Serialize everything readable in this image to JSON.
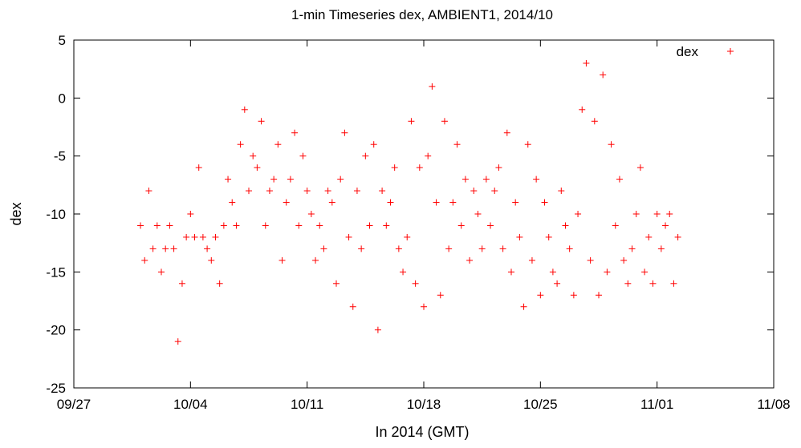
{
  "chart_data": {
    "type": "scatter",
    "title": "1-min Timeseries dex, AMBIENT1, 2014/10",
    "xlabel": "In 2014 (GMT)",
    "ylabel": "dex",
    "xlim": [
      "2014-09-27",
      "2014-11-08"
    ],
    "ylim": [
      -25,
      5
    ],
    "x_ticks": [
      "09/27",
      "10/04",
      "10/11",
      "10/18",
      "10/25",
      "11/01",
      "11/08"
    ],
    "y_ticks": [
      "5",
      "0",
      "-5",
      "-10",
      "-15",
      "-20",
      "-25"
    ],
    "grid": false,
    "legend_position": "top-right",
    "marker": "+",
    "color": "#ff0000",
    "series": [
      {
        "name": "dex",
        "x": [
          "2014-10-01 00:00",
          "2014-10-01 06:00",
          "2014-10-01 12:00",
          "2014-10-01 18:00",
          "2014-10-02 00:00",
          "2014-10-02 06:00",
          "2014-10-02 12:00",
          "2014-10-02 18:00",
          "2014-10-03 00:00",
          "2014-10-03 06:00",
          "2014-10-03 12:00",
          "2014-10-03 18:00",
          "2014-10-04 00:00",
          "2014-10-04 06:00",
          "2014-10-04 12:00",
          "2014-10-04 18:00",
          "2014-10-05 00:00",
          "2014-10-05 06:00",
          "2014-10-05 12:00",
          "2014-10-05 18:00",
          "2014-10-06 00:00",
          "2014-10-06 06:00",
          "2014-10-06 12:00",
          "2014-10-06 18:00",
          "2014-10-07 00:00",
          "2014-10-07 06:00",
          "2014-10-07 12:00",
          "2014-10-07 18:00",
          "2014-10-08 00:00",
          "2014-10-08 06:00",
          "2014-10-08 12:00",
          "2014-10-08 18:00",
          "2014-10-09 00:00",
          "2014-10-09 06:00",
          "2014-10-09 12:00",
          "2014-10-09 18:00",
          "2014-10-10 00:00",
          "2014-10-10 06:00",
          "2014-10-10 12:00",
          "2014-10-10 18:00",
          "2014-10-11 00:00",
          "2014-10-11 06:00",
          "2014-10-11 12:00",
          "2014-10-11 18:00",
          "2014-10-12 00:00",
          "2014-10-12 06:00",
          "2014-10-12 12:00",
          "2014-10-12 18:00",
          "2014-10-13 00:00",
          "2014-10-13 06:00",
          "2014-10-13 12:00",
          "2014-10-13 18:00",
          "2014-10-14 00:00",
          "2014-10-14 06:00",
          "2014-10-14 12:00",
          "2014-10-14 18:00",
          "2014-10-15 00:00",
          "2014-10-15 06:00",
          "2014-10-15 12:00",
          "2014-10-15 18:00",
          "2014-10-16 00:00",
          "2014-10-16 06:00",
          "2014-10-16 12:00",
          "2014-10-16 18:00",
          "2014-10-17 00:00",
          "2014-10-17 06:00",
          "2014-10-17 12:00",
          "2014-10-17 18:00",
          "2014-10-18 00:00",
          "2014-10-18 06:00",
          "2014-10-18 12:00",
          "2014-10-18 18:00",
          "2014-10-19 00:00",
          "2014-10-19 06:00",
          "2014-10-19 12:00",
          "2014-10-19 18:00",
          "2014-10-20 00:00",
          "2014-10-20 06:00",
          "2014-10-20 12:00",
          "2014-10-20 18:00",
          "2014-10-21 00:00",
          "2014-10-21 06:00",
          "2014-10-21 12:00",
          "2014-10-21 18:00",
          "2014-10-22 00:00",
          "2014-10-22 06:00",
          "2014-10-22 12:00",
          "2014-10-22 18:00",
          "2014-10-23 00:00",
          "2014-10-23 06:00",
          "2014-10-23 12:00",
          "2014-10-23 18:00",
          "2014-10-24 00:00",
          "2014-10-24 06:00",
          "2014-10-24 12:00",
          "2014-10-24 18:00",
          "2014-10-25 00:00",
          "2014-10-25 06:00",
          "2014-10-25 12:00",
          "2014-10-25 18:00",
          "2014-10-26 00:00",
          "2014-10-26 06:00",
          "2014-10-26 12:00",
          "2014-10-26 18:00",
          "2014-10-27 00:00",
          "2014-10-27 06:00",
          "2014-10-27 12:00",
          "2014-10-27 18:00",
          "2014-10-28 00:00",
          "2014-10-28 06:00",
          "2014-10-28 12:00",
          "2014-10-28 18:00",
          "2014-10-29 00:00",
          "2014-10-29 06:00",
          "2014-10-29 12:00",
          "2014-10-29 18:00",
          "2014-10-30 00:00",
          "2014-10-30 06:00",
          "2014-10-30 12:00",
          "2014-10-30 18:00",
          "2014-10-31 00:00",
          "2014-10-31 06:00",
          "2014-10-31 12:00",
          "2014-10-31 18:00",
          "2014-11-01 00:00",
          "2014-11-01 06:00",
          "2014-11-01 12:00",
          "2014-11-01 18:00",
          "2014-11-02 00:00",
          "2014-11-02 06:00"
        ],
        "y": [
          -11,
          -14,
          -8,
          -13,
          -11,
          -15,
          -13,
          -11,
          -13,
          -21,
          -16,
          -12,
          -10,
          -12,
          -6,
          -12,
          -13,
          -14,
          -12,
          -16,
          -11,
          -7,
          -9,
          -11,
          -4,
          -1,
          -8,
          -5,
          -6,
          -2,
          -11,
          -8,
          -7,
          -4,
          -14,
          -9,
          -7,
          -3,
          -11,
          -5,
          -8,
          -10,
          -14,
          -11,
          -13,
          -8,
          -9,
          -16,
          -7,
          -3,
          -12,
          -18,
          -8,
          -13,
          -5,
          -11,
          -4,
          -20,
          -8,
          -11,
          -9,
          -6,
          -13,
          -15,
          -12,
          -2,
          -16,
          -6,
          -18,
          -5,
          1,
          -9,
          -17,
          -2,
          -13,
          -9,
          -4,
          -11,
          -7,
          -14,
          -8,
          -10,
          -13,
          -7,
          -11,
          -8,
          -6,
          -13,
          -3,
          -15,
          -9,
          -12,
          -18,
          -4,
          -14,
          -7,
          -17,
          -9,
          -12,
          -15,
          -16,
          -8,
          -11,
          -13,
          -17,
          -10,
          -1,
          3,
          -14,
          -2,
          -17,
          2,
          -15,
          -4,
          -11,
          -7,
          -14,
          -16,
          -13,
          -10,
          -6,
          -15,
          -12,
          -16,
          -10,
          -13,
          -11,
          -10,
          -16,
          -12
        ]
      }
    ]
  }
}
